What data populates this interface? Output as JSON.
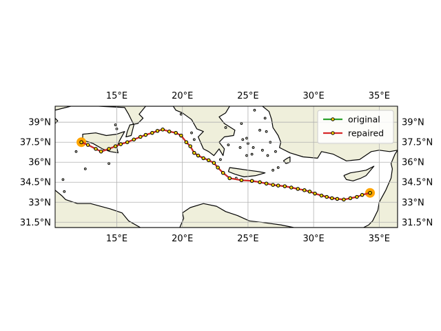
{
  "chart_data": {
    "type": "map",
    "projection": "plate-carree",
    "xlim": [
      10.3,
      36.4
    ],
    "ylim": [
      31.1,
      40.2
    ],
    "grid": true,
    "x_ticks": [
      {
        "value": 15,
        "label": "15°E"
      },
      {
        "value": 20,
        "label": "20°E"
      },
      {
        "value": 25,
        "label": "25°E"
      },
      {
        "value": 30,
        "label": "30°E"
      },
      {
        "value": 35,
        "label": "35°E"
      }
    ],
    "y_ticks": [
      {
        "value": 31.5,
        "label": "31.5°N"
      },
      {
        "value": 33,
        "label": "33°N"
      },
      {
        "value": 34.5,
        "label": "34.5°N"
      },
      {
        "value": 36,
        "label": "36°N"
      },
      {
        "value": 37.5,
        "label": "37.5°N"
      },
      {
        "value": 39,
        "label": "39°N"
      }
    ],
    "legend": {
      "placement": "top-right",
      "entries": [
        {
          "label": "original",
          "color": "#2ca02c"
        },
        {
          "label": "repaired",
          "color": "#d62728"
        }
      ]
    },
    "colors": {
      "land": "#efefdb",
      "coast": "#000000",
      "marker_face": "#ffd700",
      "endpoint": "#ffa500"
    },
    "endpoints": [
      {
        "lon": 12.3,
        "lat": 37.5
      },
      {
        "lon": 34.3,
        "lat": 33.7
      }
    ],
    "series": [
      {
        "name": "original",
        "color": "#2ca02c",
        "points": [
          {
            "lon": 12.3,
            "lat": 37.5
          },
          {
            "lon": 12.8,
            "lat": 37.3
          },
          {
            "lon": 13.4,
            "lat": 37.0
          },
          {
            "lon": 13.8,
            "lat": 36.8
          },
          {
            "lon": 14.4,
            "lat": 37.0
          },
          {
            "lon": 14.9,
            "lat": 37.2
          },
          {
            "lon": 15.3,
            "lat": 37.35
          },
          {
            "lon": 15.8,
            "lat": 37.5
          },
          {
            "lon": 16.3,
            "lat": 37.7
          },
          {
            "lon": 16.8,
            "lat": 37.9
          },
          {
            "lon": 17.2,
            "lat": 38.05
          },
          {
            "lon": 17.7,
            "lat": 38.2
          },
          {
            "lon": 18.1,
            "lat": 38.35
          },
          {
            "lon": 18.5,
            "lat": 38.45
          },
          {
            "lon": 19.0,
            "lat": 38.3
          },
          {
            "lon": 19.5,
            "lat": 38.2
          },
          {
            "lon": 19.9,
            "lat": 38.0
          },
          {
            "lon": 20.3,
            "lat": 37.5
          },
          {
            "lon": 20.6,
            "lat": 37.2
          },
          {
            "lon": 20.9,
            "lat": 36.7
          },
          {
            "lon": 21.2,
            "lat": 36.5
          },
          {
            "lon": 21.6,
            "lat": 36.3
          },
          {
            "lon": 22.0,
            "lat": 36.15
          },
          {
            "lon": 22.4,
            "lat": 35.95
          },
          {
            "lon": 22.7,
            "lat": 35.6
          },
          {
            "lon": 23.1,
            "lat": 35.2
          },
          {
            "lon": 23.6,
            "lat": 34.8
          },
          {
            "lon": 24.5,
            "lat": 34.65
          },
          {
            "lon": 25.3,
            "lat": 34.6
          },
          {
            "lon": 25.9,
            "lat": 34.5
          },
          {
            "lon": 26.4,
            "lat": 34.4
          },
          {
            "lon": 26.9,
            "lat": 34.3
          },
          {
            "lon": 27.3,
            "lat": 34.25
          },
          {
            "lon": 27.8,
            "lat": 34.2
          },
          {
            "lon": 28.3,
            "lat": 34.1
          },
          {
            "lon": 28.8,
            "lat": 34.0
          },
          {
            "lon": 29.3,
            "lat": 33.9
          },
          {
            "lon": 29.7,
            "lat": 33.8
          },
          {
            "lon": 30.1,
            "lat": 33.65
          },
          {
            "lon": 30.6,
            "lat": 33.5
          },
          {
            "lon": 31.0,
            "lat": 33.4
          },
          {
            "lon": 31.4,
            "lat": 33.3
          },
          {
            "lon": 31.8,
            "lat": 33.25
          },
          {
            "lon": 32.3,
            "lat": 33.2
          },
          {
            "lon": 32.8,
            "lat": 33.3
          },
          {
            "lon": 33.3,
            "lat": 33.4
          },
          {
            "lon": 33.7,
            "lat": 33.55
          },
          {
            "lon": 34.3,
            "lat": 33.7
          }
        ]
      },
      {
        "name": "repaired",
        "color": "#d62728",
        "points": [
          {
            "lon": 12.3,
            "lat": 37.5
          },
          {
            "lon": 12.8,
            "lat": 37.3
          },
          {
            "lon": 13.4,
            "lat": 37.0
          },
          {
            "lon": 13.8,
            "lat": 36.8
          },
          {
            "lon": 14.4,
            "lat": 37.0
          },
          {
            "lon": 14.9,
            "lat": 37.2
          },
          {
            "lon": 15.3,
            "lat": 37.35
          },
          {
            "lon": 15.8,
            "lat": 37.5
          },
          {
            "lon": 16.3,
            "lat": 37.7
          },
          {
            "lon": 16.8,
            "lat": 37.9
          },
          {
            "lon": 17.2,
            "lat": 38.05
          },
          {
            "lon": 17.7,
            "lat": 38.2
          },
          {
            "lon": 18.1,
            "lat": 38.35
          },
          {
            "lon": 18.5,
            "lat": 38.45
          },
          {
            "lon": 19.0,
            "lat": 38.3
          },
          {
            "lon": 19.5,
            "lat": 38.2
          },
          {
            "lon": 19.9,
            "lat": 38.0
          },
          {
            "lon": 20.3,
            "lat": 37.5
          },
          {
            "lon": 20.6,
            "lat": 37.2
          },
          {
            "lon": 20.9,
            "lat": 36.7
          },
          {
            "lon": 21.2,
            "lat": 36.5
          },
          {
            "lon": 21.6,
            "lat": 36.3
          },
          {
            "lon": 22.0,
            "lat": 36.15
          },
          {
            "lon": 22.4,
            "lat": 35.95
          },
          {
            "lon": 22.7,
            "lat": 35.6
          },
          {
            "lon": 23.1,
            "lat": 35.2
          },
          {
            "lon": 23.6,
            "lat": 34.8
          },
          {
            "lon": 24.5,
            "lat": 34.65
          },
          {
            "lon": 25.3,
            "lat": 34.6
          },
          {
            "lon": 25.9,
            "lat": 34.5
          },
          {
            "lon": 26.4,
            "lat": 34.4
          },
          {
            "lon": 26.9,
            "lat": 34.3
          },
          {
            "lon": 27.3,
            "lat": 34.25
          },
          {
            "lon": 27.8,
            "lat": 34.2
          },
          {
            "lon": 28.3,
            "lat": 34.1
          },
          {
            "lon": 28.8,
            "lat": 34.0
          },
          {
            "lon": 29.3,
            "lat": 33.9
          },
          {
            "lon": 29.7,
            "lat": 33.8
          },
          {
            "lon": 30.1,
            "lat": 33.65
          },
          {
            "lon": 30.6,
            "lat": 33.5
          },
          {
            "lon": 31.0,
            "lat": 33.4
          },
          {
            "lon": 31.4,
            "lat": 33.3
          },
          {
            "lon": 31.8,
            "lat": 33.25
          },
          {
            "lon": 32.3,
            "lat": 33.2
          },
          {
            "lon": 32.8,
            "lat": 33.3
          },
          {
            "lon": 33.3,
            "lat": 33.4
          },
          {
            "lon": 33.7,
            "lat": 33.55
          },
          {
            "lon": 34.3,
            "lat": 33.7
          }
        ]
      }
    ],
    "land_polygons": [
      {
        "name": "italy",
        "coords": [
          [
            10.3,
            40.2
          ],
          [
            10.3,
            39.9
          ],
          [
            11.5,
            40.2
          ],
          [
            12.5,
            40.2
          ],
          [
            13.6,
            40.2
          ],
          [
            15.6,
            40.1
          ],
          [
            15.9,
            39.6
          ],
          [
            16.3,
            38.8
          ],
          [
            16.1,
            38.0
          ],
          [
            15.7,
            37.9
          ],
          [
            15.8,
            38.3
          ],
          [
            16.0,
            38.8
          ],
          [
            16.6,
            38.9
          ],
          [
            17.0,
            39.3
          ],
          [
            16.7,
            39.6
          ],
          [
            17.2,
            40.2
          ],
          [
            18.3,
            40.2
          ]
        ]
      },
      {
        "name": "sicily",
        "coords": [
          [
            12.4,
            37.8
          ],
          [
            12.4,
            38.1
          ],
          [
            13.4,
            38.2
          ],
          [
            14.2,
            38.0
          ],
          [
            15.0,
            38.1
          ],
          [
            15.6,
            38.3
          ],
          [
            15.2,
            37.6
          ],
          [
            15.0,
            37.1
          ],
          [
            15.1,
            36.7
          ],
          [
            14.5,
            36.8
          ],
          [
            13.9,
            37.0
          ],
          [
            13.2,
            37.4
          ],
          [
            12.6,
            37.6
          ],
          [
            12.4,
            37.8
          ]
        ]
      },
      {
        "name": "balkans-greece",
        "coords": [
          [
            18.3,
            40.2
          ],
          [
            19.3,
            40.2
          ],
          [
            19.5,
            39.9
          ],
          [
            20.0,
            39.7
          ],
          [
            20.7,
            39.2
          ],
          [
            21.1,
            38.5
          ],
          [
            21.6,
            38.3
          ],
          [
            21.2,
            37.9
          ],
          [
            21.6,
            37.0
          ],
          [
            22.0,
            36.8
          ],
          [
            22.4,
            36.5
          ],
          [
            22.8,
            37.0
          ],
          [
            23.1,
            36.5
          ],
          [
            23.2,
            37.0
          ],
          [
            22.8,
            37.5
          ],
          [
            23.2,
            37.9
          ],
          [
            23.9,
            38.0
          ],
          [
            24.0,
            38.4
          ],
          [
            23.2,
            38.9
          ],
          [
            22.8,
            39.4
          ],
          [
            23.3,
            39.7
          ],
          [
            23.6,
            40.2
          ]
        ]
      },
      {
        "name": "turkey",
        "coords": [
          [
            26.1,
            40.2
          ],
          [
            26.6,
            39.8
          ],
          [
            26.8,
            39.2
          ],
          [
            26.9,
            38.6
          ],
          [
            27.3,
            38.0
          ],
          [
            27.5,
            37.5
          ],
          [
            27.4,
            37.1
          ],
          [
            28.2,
            36.7
          ],
          [
            29.2,
            36.4
          ],
          [
            30.3,
            36.3
          ],
          [
            30.6,
            36.8
          ],
          [
            31.5,
            36.6
          ],
          [
            32.5,
            36.1
          ],
          [
            33.5,
            36.2
          ],
          [
            34.4,
            36.8
          ],
          [
            35.0,
            36.9
          ],
          [
            35.8,
            36.8
          ],
          [
            36.4,
            36.9
          ],
          [
            36.4,
            40.2
          ]
        ]
      },
      {
        "name": "crete",
        "coords": [
          [
            23.5,
            35.3
          ],
          [
            23.6,
            35.6
          ],
          [
            24.3,
            35.5
          ],
          [
            25.0,
            35.4
          ],
          [
            25.8,
            35.3
          ],
          [
            26.3,
            35.2
          ],
          [
            25.6,
            35.0
          ],
          [
            24.7,
            34.9
          ],
          [
            24.0,
            35.1
          ],
          [
            23.5,
            35.3
          ]
        ]
      },
      {
        "name": "cyprus",
        "coords": [
          [
            32.3,
            35.0
          ],
          [
            32.8,
            35.2
          ],
          [
            33.4,
            35.3
          ],
          [
            34.0,
            35.4
          ],
          [
            34.6,
            35.7
          ],
          [
            34.0,
            35.0
          ],
          [
            33.6,
            34.8
          ],
          [
            33.0,
            34.6
          ],
          [
            32.5,
            34.7
          ],
          [
            32.3,
            35.0
          ]
        ]
      },
      {
        "name": "rhodes",
        "coords": [
          [
            27.7,
            36.1
          ],
          [
            28.0,
            36.3
          ],
          [
            28.2,
            36.4
          ],
          [
            28.2,
            36.0
          ],
          [
            27.9,
            35.9
          ],
          [
            27.7,
            36.1
          ]
        ]
      },
      {
        "name": "africa",
        "coords": [
          [
            10.3,
            33.9
          ],
          [
            10.8,
            33.5
          ],
          [
            11.1,
            33.2
          ],
          [
            12.0,
            32.9
          ],
          [
            13.0,
            32.9
          ],
          [
            14.5,
            32.5
          ],
          [
            15.4,
            32.2
          ],
          [
            15.9,
            31.6
          ],
          [
            16.8,
            31.1
          ],
          [
            19.8,
            31.1
          ],
          [
            20.1,
            31.8
          ],
          [
            20.0,
            32.2
          ],
          [
            20.6,
            32.6
          ],
          [
            21.6,
            32.9
          ],
          [
            22.6,
            32.7
          ],
          [
            23.3,
            32.3
          ],
          [
            24.2,
            32.0
          ],
          [
            25.1,
            31.6
          ],
          [
            26.0,
            31.5
          ],
          [
            27.5,
            31.3
          ],
          [
            28.5,
            31.1
          ],
          [
            33.8,
            31.1
          ],
          [
            34.2,
            31.3
          ],
          [
            34.5,
            31.6
          ],
          [
            34.9,
            32.4
          ],
          [
            35.0,
            33.0
          ],
          [
            35.5,
            33.9
          ],
          [
            35.9,
            34.8
          ],
          [
            36.0,
            35.5
          ],
          [
            35.9,
            35.9
          ],
          [
            36.2,
            36.6
          ],
          [
            36.4,
            36.9
          ],
          [
            36.4,
            31.1
          ],
          [
            10.3,
            31.1
          ]
        ]
      },
      {
        "name": "sardinia",
        "coords": [
          [
            10.3,
            38.9
          ],
          [
            10.3,
            39.3
          ],
          [
            10.5,
            39.1
          ],
          [
            10.3,
            38.9
          ]
        ]
      }
    ],
    "small_islands": [
      {
        "lon": 24.4,
        "lat": 37.1
      },
      {
        "lon": 25.0,
        "lat": 37.4
      },
      {
        "lon": 25.4,
        "lat": 37.1
      },
      {
        "lon": 25.3,
        "lat": 36.6
      },
      {
        "lon": 26.1,
        "lat": 36.9
      },
      {
        "lon": 24.9,
        "lat": 37.8
      },
      {
        "lon": 26.7,
        "lat": 37.5
      },
      {
        "lon": 27.1,
        "lat": 36.8
      },
      {
        "lon": 24.6,
        "lat": 37.7
      },
      {
        "lon": 26.4,
        "lat": 38.3
      },
      {
        "lon": 25.9,
        "lat": 38.4
      },
      {
        "lon": 24.9,
        "lat": 36.5
      },
      {
        "lon": 27.3,
        "lat": 35.6
      },
      {
        "lon": 26.5,
        "lat": 36.5
      },
      {
        "lon": 23.5,
        "lat": 37.3
      },
      {
        "lon": 23.3,
        "lat": 38.6
      },
      {
        "lon": 24.5,
        "lat": 38.9
      },
      {
        "lon": 25.5,
        "lat": 39.9
      },
      {
        "lon": 26.3,
        "lat": 39.3
      },
      {
        "lon": 20.7,
        "lat": 38.2
      },
      {
        "lon": 20.9,
        "lat": 37.7
      },
      {
        "lon": 19.9,
        "lat": 39.6
      },
      {
        "lon": 14.4,
        "lat": 35.9
      },
      {
        "lon": 12.6,
        "lat": 35.5
      },
      {
        "lon": 11.9,
        "lat": 36.8
      },
      {
        "lon": 15.0,
        "lat": 38.5
      },
      {
        "lon": 14.9,
        "lat": 38.8
      },
      {
        "lon": 11.0,
        "lat": 33.8
      },
      {
        "lon": 10.9,
        "lat": 34.7
      },
      {
        "lon": 26.9,
        "lat": 35.4
      },
      {
        "lon": 22.9,
        "lat": 36.2
      },
      {
        "lon": 24.1,
        "lat": 34.8
      }
    ]
  }
}
